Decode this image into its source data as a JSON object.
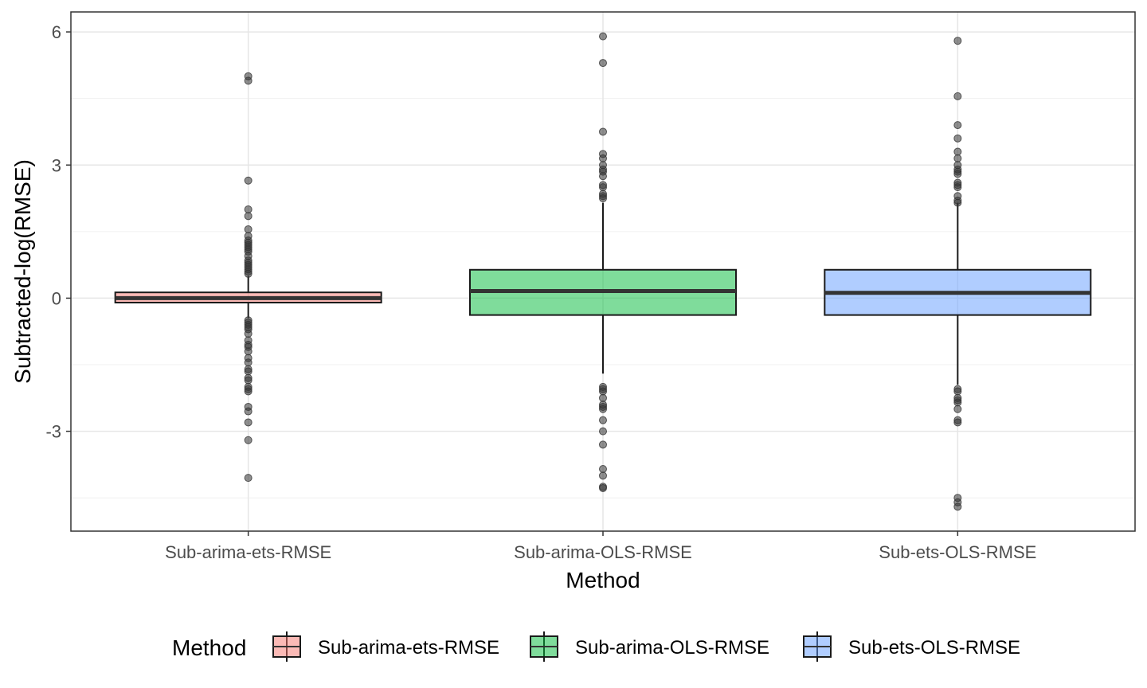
{
  "chart_data": {
    "type": "boxplot",
    "title": "",
    "xlabel": "Method",
    "ylabel": "Subtracted-log(RMSE)",
    "ylim": [
      -5.25,
      6.45
    ],
    "yticks": [
      6,
      3,
      0,
      -3
    ],
    "ytick_labels": [
      "6",
      "3",
      "0",
      "-3"
    ],
    "grid": true,
    "legend_placement": "bottom",
    "legend_title": "Method",
    "categories": [
      "Sub-arima-ets-RMSE",
      "Sub-arima-OLS-RMSE",
      "Sub-ets-OLS-RMSE"
    ],
    "series": [
      {
        "name": "Sub-arima-ets-RMSE",
        "color": "#F8766D",
        "q1": -0.1,
        "median": 0.0,
        "q3": 0.13,
        "whisker_low": -0.45,
        "whisker_high": 0.5,
        "outliers": [
          5.0,
          4.9,
          2.65,
          2.0,
          1.85,
          1.55,
          1.4,
          1.3,
          1.25,
          1.2,
          1.15,
          1.1,
          1.05,
          0.95,
          0.85,
          0.8,
          0.75,
          0.7,
          0.65,
          0.6,
          0.55,
          -0.5,
          -0.55,
          -0.6,
          -0.65,
          -0.7,
          -0.8,
          -0.95,
          -1.05,
          -1.1,
          -1.2,
          -1.35,
          -1.45,
          -1.6,
          -1.65,
          -1.8,
          -1.85,
          -2.0,
          -2.05,
          -2.1,
          -2.45,
          -2.55,
          -2.8,
          -3.2,
          -4.05
        ]
      },
      {
        "name": "Sub-arima-OLS-RMSE",
        "color": "#00BA38",
        "q1": -0.38,
        "median": 0.16,
        "q3": 0.64,
        "whisker_low": -1.7,
        "whisker_high": 2.15,
        "outliers": [
          5.9,
          5.3,
          3.75,
          3.25,
          3.15,
          3.0,
          2.9,
          2.85,
          2.75,
          2.55,
          2.5,
          2.35,
          2.3,
          2.25,
          -2.0,
          -2.05,
          -2.1,
          -2.25,
          -2.4,
          -2.45,
          -2.5,
          -2.75,
          -3.0,
          -3.3,
          -3.85,
          -4.0,
          -4.25,
          -4.28
        ]
      },
      {
        "name": "Sub-ets-OLS-RMSE",
        "color": "#619CFF",
        "q1": -0.38,
        "median": 0.12,
        "q3": 0.64,
        "whisker_low": -1.95,
        "whisker_high": 2.15,
        "outliers": [
          5.8,
          4.55,
          3.9,
          3.6,
          3.3,
          3.15,
          3.0,
          2.9,
          2.85,
          2.8,
          2.6,
          2.55,
          2.5,
          2.3,
          2.2,
          2.15,
          -2.05,
          -2.1,
          -2.25,
          -2.3,
          -2.35,
          -2.5,
          -2.75,
          -2.8,
          -4.5,
          -4.6,
          -4.7
        ]
      }
    ]
  }
}
